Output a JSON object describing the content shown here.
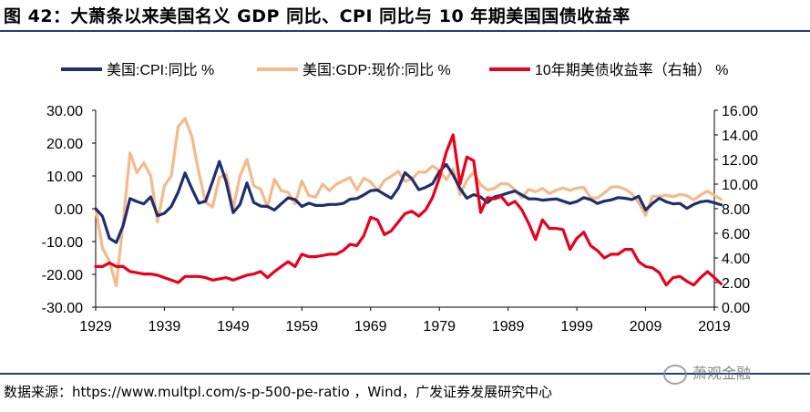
{
  "title": "图 42：大萧条以来美国名义 GDP 同比、CPI 同比与 10 年期美国国债收益率",
  "source": "数据来源：https://www.multpl.com/s-p-500-pe-ratio ，Wind，广发证券发展研究中心",
  "watermark": "萧观金融",
  "colors": {
    "cpi": "#1f2f6e",
    "gdp": "#f5b98a",
    "yield": "#e8001c",
    "rule": "#1f3e7a"
  },
  "chart_data": {
    "type": "line",
    "x_ticks": [
      1929,
      1939,
      1949,
      1959,
      1969,
      1979,
      1989,
      1999,
      2009,
      2019
    ],
    "xlim": [
      1929,
      2019
    ],
    "left_axis": {
      "ylim": [
        -30,
        30
      ],
      "ticks": [
        "-30.00",
        "-20.00",
        "-10.00",
        "0.00",
        "10.00",
        "20.00",
        "30.00"
      ]
    },
    "right_axis": {
      "ylim": [
        0,
        16
      ],
      "ticks": [
        "0.00",
        "2.00",
        "4.00",
        "6.00",
        "8.00",
        "10.00",
        "12.00",
        "14.00",
        "16.00"
      ]
    },
    "legend_position": "top",
    "series": [
      {
        "name": "美国:CPI:同比 %",
        "axis": "left",
        "x": [
          1929,
          1930,
          1931,
          1932,
          1933,
          1934,
          1935,
          1936,
          1937,
          1938,
          1939,
          1940,
          1941,
          1942,
          1943,
          1944,
          1945,
          1946,
          1947,
          1948,
          1949,
          1950,
          1951,
          1952,
          1953,
          1954,
          1955,
          1956,
          1957,
          1958,
          1959,
          1960,
          1961,
          1962,
          1963,
          1964,
          1965,
          1966,
          1967,
          1968,
          1969,
          1970,
          1971,
          1972,
          1973,
          1974,
          1975,
          1976,
          1977,
          1978,
          1979,
          1980,
          1981,
          1982,
          1983,
          1984,
          1985,
          1986,
          1987,
          1988,
          1989,
          1990,
          1991,
          1992,
          1993,
          1994,
          1995,
          1996,
          1997,
          1998,
          1999,
          2000,
          2001,
          2002,
          2003,
          2004,
          2005,
          2006,
          2007,
          2008,
          2009,
          2010,
          2011,
          2012,
          2013,
          2014,
          2015,
          2016,
          2017,
          2018,
          2019,
          2020
        ],
        "values": [
          0.0,
          -2.3,
          -9.0,
          -10.3,
          -5.1,
          3.1,
          2.2,
          1.5,
          3.6,
          -2.1,
          -1.4,
          0.7,
          5.0,
          10.9,
          6.1,
          1.7,
          2.3,
          8.3,
          14.4,
          8.1,
          -1.2,
          1.3,
          7.9,
          1.9,
          0.8,
          0.7,
          -0.4,
          1.5,
          3.3,
          2.8,
          0.7,
          1.7,
          1.0,
          1.0,
          1.3,
          1.3,
          1.6,
          2.9,
          3.1,
          4.2,
          5.5,
          5.7,
          4.4,
          3.2,
          6.2,
          11.0,
          9.1,
          5.8,
          6.5,
          7.6,
          11.3,
          13.5,
          10.3,
          6.2,
          3.2,
          4.3,
          3.6,
          1.9,
          3.6,
          4.1,
          4.8,
          5.4,
          4.2,
          3.0,
          3.0,
          2.6,
          2.8,
          3.0,
          2.3,
          1.6,
          2.2,
          3.4,
          2.8,
          1.6,
          2.3,
          2.7,
          3.4,
          3.2,
          2.8,
          3.8,
          -0.4,
          1.6,
          3.2,
          2.1,
          1.5,
          1.6,
          0.1,
          1.3,
          2.1,
          2.4,
          1.8,
          1.2
        ]
      },
      {
        "name": "美国:GDP:现价:同比 %",
        "axis": "left",
        "x": [
          1929,
          1930,
          1931,
          1932,
          1933,
          1934,
          1935,
          1936,
          1937,
          1938,
          1939,
          1940,
          1941,
          1942,
          1943,
          1944,
          1945,
          1946,
          1947,
          1948,
          1949,
          1950,
          1951,
          1952,
          1953,
          1954,
          1955,
          1956,
          1957,
          1958,
          1959,
          1960,
          1961,
          1962,
          1963,
          1964,
          1965,
          1966,
          1967,
          1968,
          1969,
          1970,
          1971,
          1972,
          1973,
          1974,
          1975,
          1976,
          1977,
          1978,
          1979,
          1980,
          1981,
          1982,
          1983,
          1984,
          1985,
          1986,
          1987,
          1988,
          1989,
          1990,
          1991,
          1992,
          1993,
          1994,
          1995,
          1996,
          1997,
          1998,
          1999,
          2000,
          2001,
          2002,
          2003,
          2004,
          2005,
          2006,
          2007,
          2008,
          2009,
          2010,
          2011,
          2012,
          2013,
          2014,
          2015,
          2016,
          2017,
          2018,
          2019,
          2020
        ],
        "values": [
          0.0,
          -12.0,
          -16.0,
          -23.5,
          -4.0,
          17.0,
          11.0,
          14.0,
          10.0,
          -4.0,
          7.0,
          10.0,
          25.0,
          27.5,
          22.0,
          11.0,
          2.0,
          0.5,
          9.5,
          10.5,
          0.0,
          10.0,
          15.0,
          7.0,
          6.0,
          0.5,
          9.0,
          5.5,
          5.0,
          1.5,
          8.5,
          4.0,
          3.5,
          7.5,
          5.5,
          7.5,
          8.5,
          9.5,
          5.7,
          9.3,
          8.2,
          5.5,
          8.6,
          9.9,
          11.4,
          8.4,
          9.0,
          11.2,
          11.1,
          13.0,
          11.7,
          8.8,
          12.2,
          4.3,
          8.7,
          11.2,
          7.3,
          5.7,
          6.2,
          7.7,
          7.5,
          5.8,
          3.3,
          5.9,
          5.2,
          6.2,
          4.6,
          5.7,
          6.3,
          5.6,
          6.3,
          6.5,
          3.3,
          3.3,
          4.8,
          6.6,
          6.7,
          6.0,
          4.6,
          1.8,
          -2.0,
          3.8,
          3.7,
          4.2,
          3.6,
          4.4,
          4.0,
          2.7,
          4.2,
          5.4,
          4.1,
          2.8
        ]
      },
      {
        "name": "10年期美债收益率（右轴） %",
        "axis": "right",
        "x": [
          1929,
          1930,
          1931,
          1932,
          1933,
          1934,
          1935,
          1936,
          1937,
          1938,
          1939,
          1940,
          1941,
          1942,
          1943,
          1944,
          1945,
          1946,
          1947,
          1948,
          1949,
          1950,
          1951,
          1952,
          1953,
          1954,
          1955,
          1956,
          1957,
          1958,
          1959,
          1960,
          1961,
          1962,
          1963,
          1964,
          1965,
          1966,
          1967,
          1968,
          1969,
          1970,
          1971,
          1972,
          1973,
          1974,
          1975,
          1976,
          1977,
          1978,
          1979,
          1980,
          1981,
          1982,
          1983,
          1984,
          1985,
          1986,
          1987,
          1988,
          1989,
          1990,
          1991,
          1992,
          1993,
          1994,
          1995,
          1996,
          1997,
          1998,
          1999,
          2000,
          2001,
          2002,
          2003,
          2004,
          2005,
          2006,
          2007,
          2008,
          2009,
          2010,
          2011,
          2012,
          2013,
          2014,
          2015,
          2016,
          2017,
          2018,
          2019,
          2020
        ],
        "values": [
          3.3,
          3.3,
          3.6,
          3.3,
          3.3,
          2.9,
          2.8,
          2.7,
          2.7,
          2.6,
          2.4,
          2.2,
          2.0,
          2.5,
          2.5,
          2.5,
          2.4,
          2.2,
          2.3,
          2.4,
          2.2,
          2.4,
          2.6,
          2.7,
          2.9,
          2.4,
          2.9,
          3.3,
          3.7,
          3.3,
          4.3,
          4.1,
          4.1,
          4.2,
          4.3,
          4.3,
          4.6,
          5.1,
          5.0,
          5.8,
          7.3,
          7.1,
          5.9,
          6.2,
          6.9,
          7.6,
          7.8,
          7.4,
          7.9,
          8.9,
          10.5,
          12.6,
          14.0,
          10.0,
          12.2,
          11.9,
          7.7,
          8.9,
          8.8,
          9.0,
          8.3,
          8.6,
          7.9,
          6.8,
          5.5,
          7.1,
          6.4,
          6.4,
          6.3,
          4.7,
          5.6,
          6.1,
          5.0,
          4.6,
          4.0,
          4.3,
          4.3,
          4.7,
          4.7,
          3.7,
          3.3,
          3.2,
          2.8,
          1.8,
          2.4,
          2.5,
          2.1,
          1.8,
          2.4,
          2.9,
          2.4,
          1.9
        ]
      }
    ]
  }
}
